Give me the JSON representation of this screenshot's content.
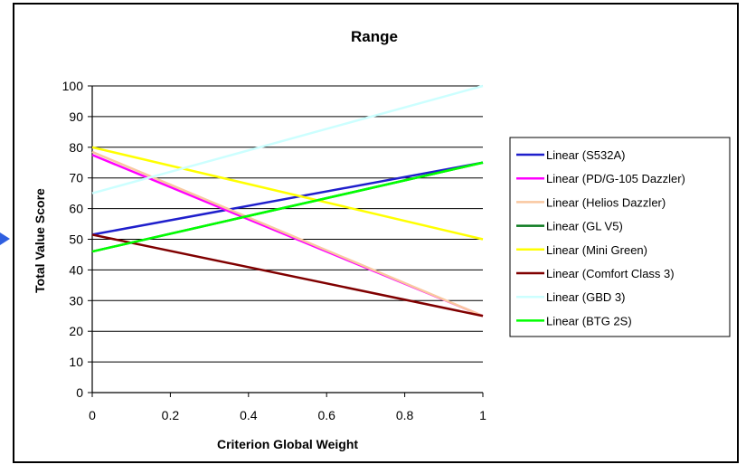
{
  "chart_data": {
    "type": "line",
    "title": "Range",
    "xlabel": "Criterion Global Weight",
    "ylabel": "Total Value Score",
    "xlim": [
      0,
      1
    ],
    "ylim": [
      0,
      100
    ],
    "x_ticks": [
      "0",
      "0.2",
      "0.4",
      "0.6",
      "0.8",
      "1"
    ],
    "y_ticks": [
      "0",
      "10",
      "20",
      "30",
      "40",
      "50",
      "60",
      "70",
      "80",
      "90",
      "100"
    ],
    "grid": "horizontal",
    "legend_position": "right",
    "series": [
      {
        "name": "Linear (S532A)",
        "color": "#1f1fcc",
        "x": [
          0,
          1
        ],
        "y": [
          51.5,
          75
        ]
      },
      {
        "name": "Linear (PD/G-105 Dazzler)",
        "color": "#ff00ff",
        "x": [
          0,
          1
        ],
        "y": [
          77.5,
          25
        ]
      },
      {
        "name": "Linear (Helios Dazzler)",
        "color": "#f9c8a0",
        "x": [
          0,
          1
        ],
        "y": [
          78.5,
          25
        ]
      },
      {
        "name": "Linear (GL V5)",
        "color": "#0b7a1f",
        "x": [
          0,
          1
        ],
        "y": [
          46,
          75
        ]
      },
      {
        "name": "Linear (Mini Green)",
        "color": "#ffff00",
        "x": [
          0,
          1
        ],
        "y": [
          80,
          50
        ]
      },
      {
        "name": "Linear (Comfort Class 3)",
        "color": "#800000",
        "x": [
          0,
          1
        ],
        "y": [
          51.5,
          25
        ]
      },
      {
        "name": "Linear (GBD 3)",
        "color": "#ccffff",
        "x": [
          0,
          1
        ],
        "y": [
          65,
          100
        ]
      },
      {
        "name": "Linear (BTG 2S)",
        "color": "#00ff00",
        "x": [
          0,
          1
        ],
        "y": [
          46,
          75
        ]
      }
    ]
  }
}
